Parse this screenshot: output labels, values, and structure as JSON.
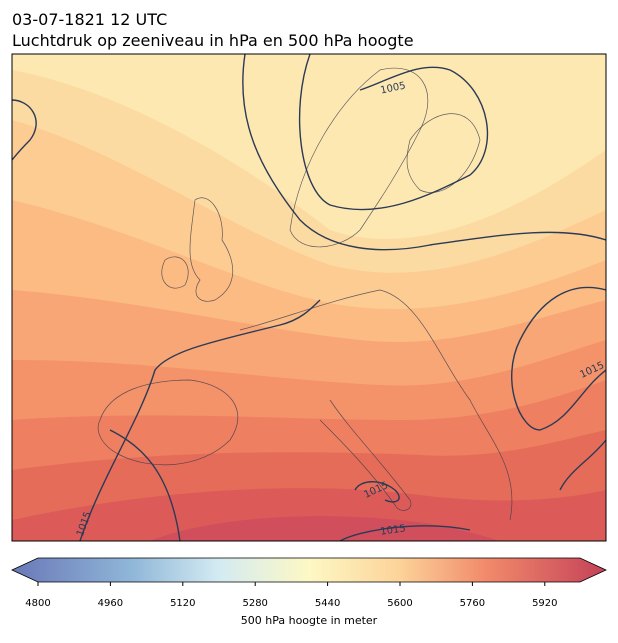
{
  "header": {
    "title": "03-07-1821 12 UTC",
    "subtitle": "Luchtdruk op zeeniveau in hPa en 500 hPa hoogte"
  },
  "map": {
    "contour_labels": [
      "1005",
      "1015",
      "1015",
      "1015",
      "1015"
    ]
  },
  "colorbar": {
    "ticks": [
      "4800",
      "4960",
      "5120",
      "5280",
      "5440",
      "5600",
      "5760",
      "5920"
    ],
    "label": "500 hPa hoogte in meter"
  }
}
